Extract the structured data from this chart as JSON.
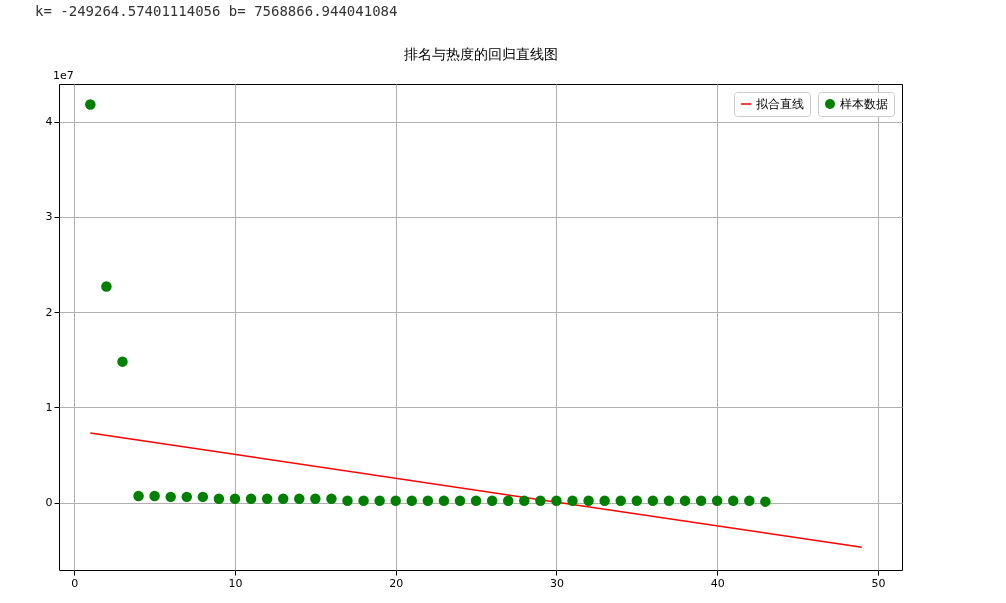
{
  "chart_data": {
    "type": "scatter",
    "title": "排名与热度的回归直线图",
    "annotations": [
      "k= -249264.57401114056 b= 7568866.944041084",
      "1e7"
    ],
    "xlim": [
      -0.95,
      51.5
    ],
    "xticks": [
      0,
      10,
      20,
      30,
      40,
      50
    ],
    "ylim": [
      -0.708,
      4.396
    ],
    "yticks": [
      0,
      1,
      2,
      3,
      4
    ],
    "grid": true,
    "legend": "top right",
    "series": [
      {
        "name": "拟合直线",
        "type": "line",
        "color": "#ff0000",
        "line_style": "solid",
        "x": [
          1,
          49
        ],
        "values": [
          0.73,
          -0.47
        ]
      },
      {
        "name": "样本数据",
        "color": "#008000",
        "marker": "circle",
        "x": [
          1,
          2,
          3,
          4,
          5,
          6,
          7,
          8,
          9,
          10,
          11,
          12,
          13,
          14,
          15,
          16,
          17,
          18,
          19,
          20,
          21,
          22,
          23,
          24,
          25,
          26,
          27,
          28,
          29,
          30,
          31,
          32,
          33,
          34,
          35,
          36,
          37,
          38,
          39,
          40,
          41,
          42,
          43
        ],
        "values": [
          4.18,
          2.27,
          1.48,
          0.07,
          0.07,
          0.06,
          0.06,
          0.06,
          0.04,
          0.04,
          0.04,
          0.04,
          0.04,
          0.04,
          0.04,
          0.04,
          0.02,
          0.02,
          0.02,
          0.02,
          0.02,
          0.02,
          0.02,
          0.02,
          0.02,
          0.02,
          0.02,
          0.02,
          0.02,
          0.02,
          0.02,
          0.02,
          0.02,
          0.02,
          0.02,
          0.02,
          0.02,
          0.02,
          0.02,
          0.02,
          0.02,
          0.02,
          0.01
        ]
      }
    ]
  }
}
